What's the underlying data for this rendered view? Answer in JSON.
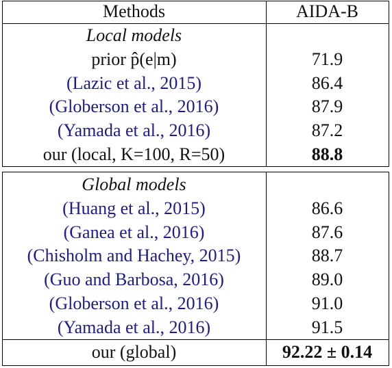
{
  "header": {
    "methods": "Methods",
    "dataset": "AIDA-B"
  },
  "sections": [
    {
      "title": "Local models",
      "rows": [
        {
          "method": "prior p̂(e|m)",
          "score": "71.9"
        },
        {
          "method": "(Lazic et al., 2015)",
          "score": "86.4",
          "color": "#1c1c8a"
        },
        {
          "method": "(Globerson et al., 2016)",
          "score": "87.9",
          "color": "#1c1c8a"
        },
        {
          "method": "(Yamada et al., 2016)",
          "score": "87.2",
          "color": "#1c1c8a"
        },
        {
          "method": "our (local, K=100, R=50)",
          "score": "88.8",
          "bold": true
        }
      ]
    },
    {
      "title": "Global models",
      "rows": [
        {
          "method": "(Huang et al., 2015)",
          "score": "86.6",
          "color": "#1c1c8a"
        },
        {
          "method": "(Ganea et al., 2016)",
          "score": "87.6",
          "color": "#1c1c8a"
        },
        {
          "method": "(Chisholm and Hachey, 2015)",
          "score": "88.7",
          "color": "#1c1c8a"
        },
        {
          "method": "(Guo and Barbosa, 2016)",
          "score": "89.0",
          "color": "#1c1c8a"
        },
        {
          "method": "(Globerson et al., 2016)",
          "score": "91.0",
          "color": "#1c1c8a"
        },
        {
          "method": "(Yamada et al., 2016)",
          "score": "91.5",
          "color": "#1c1c8a"
        }
      ]
    }
  ],
  "final": {
    "method": "our (global)",
    "score": "92.22 ± 0.14",
    "bold": true
  }
}
